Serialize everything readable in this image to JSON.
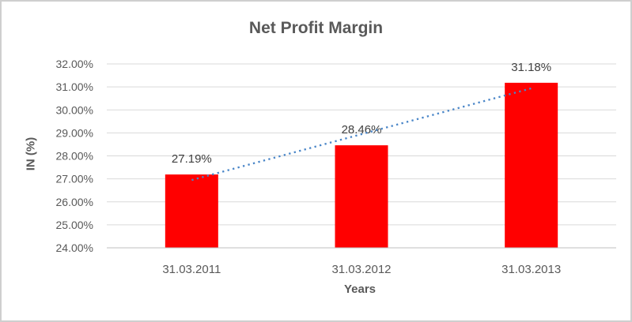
{
  "chart_data": {
    "type": "bar",
    "title": "Net Profit Margin",
    "xlabel": "Years",
    "ylabel": "IN (%)",
    "categories": [
      "31.03.2011",
      "31.03.2012",
      "31.03.2013"
    ],
    "values": [
      27.19,
      28.46,
      31.18
    ],
    "data_labels": [
      "27.19%",
      "28.46%",
      "31.18%"
    ],
    "ylim": [
      24,
      32
    ],
    "yticks": [
      24,
      25,
      26,
      27,
      28,
      29,
      30,
      31,
      32
    ],
    "ytick_labels": [
      "24.00%",
      "25.00%",
      "26.00%",
      "27.00%",
      "28.00%",
      "29.00%",
      "30.00%",
      "31.00%",
      "32.00%"
    ],
    "grid": true,
    "legend": "none",
    "trendline": {
      "type": "linear",
      "style": "dotted"
    },
    "colors": {
      "bar": "#ff0000",
      "trendline": "#4a86c8",
      "gridline": "#d9d9d9",
      "axis_line": "#bfbfbf",
      "title_text": "#595959",
      "tick_text": "#595959",
      "axis_title_text": "#595959",
      "data_label_text": "#404040",
      "border": "#cfcfcf",
      "background": "#ffffff"
    }
  }
}
